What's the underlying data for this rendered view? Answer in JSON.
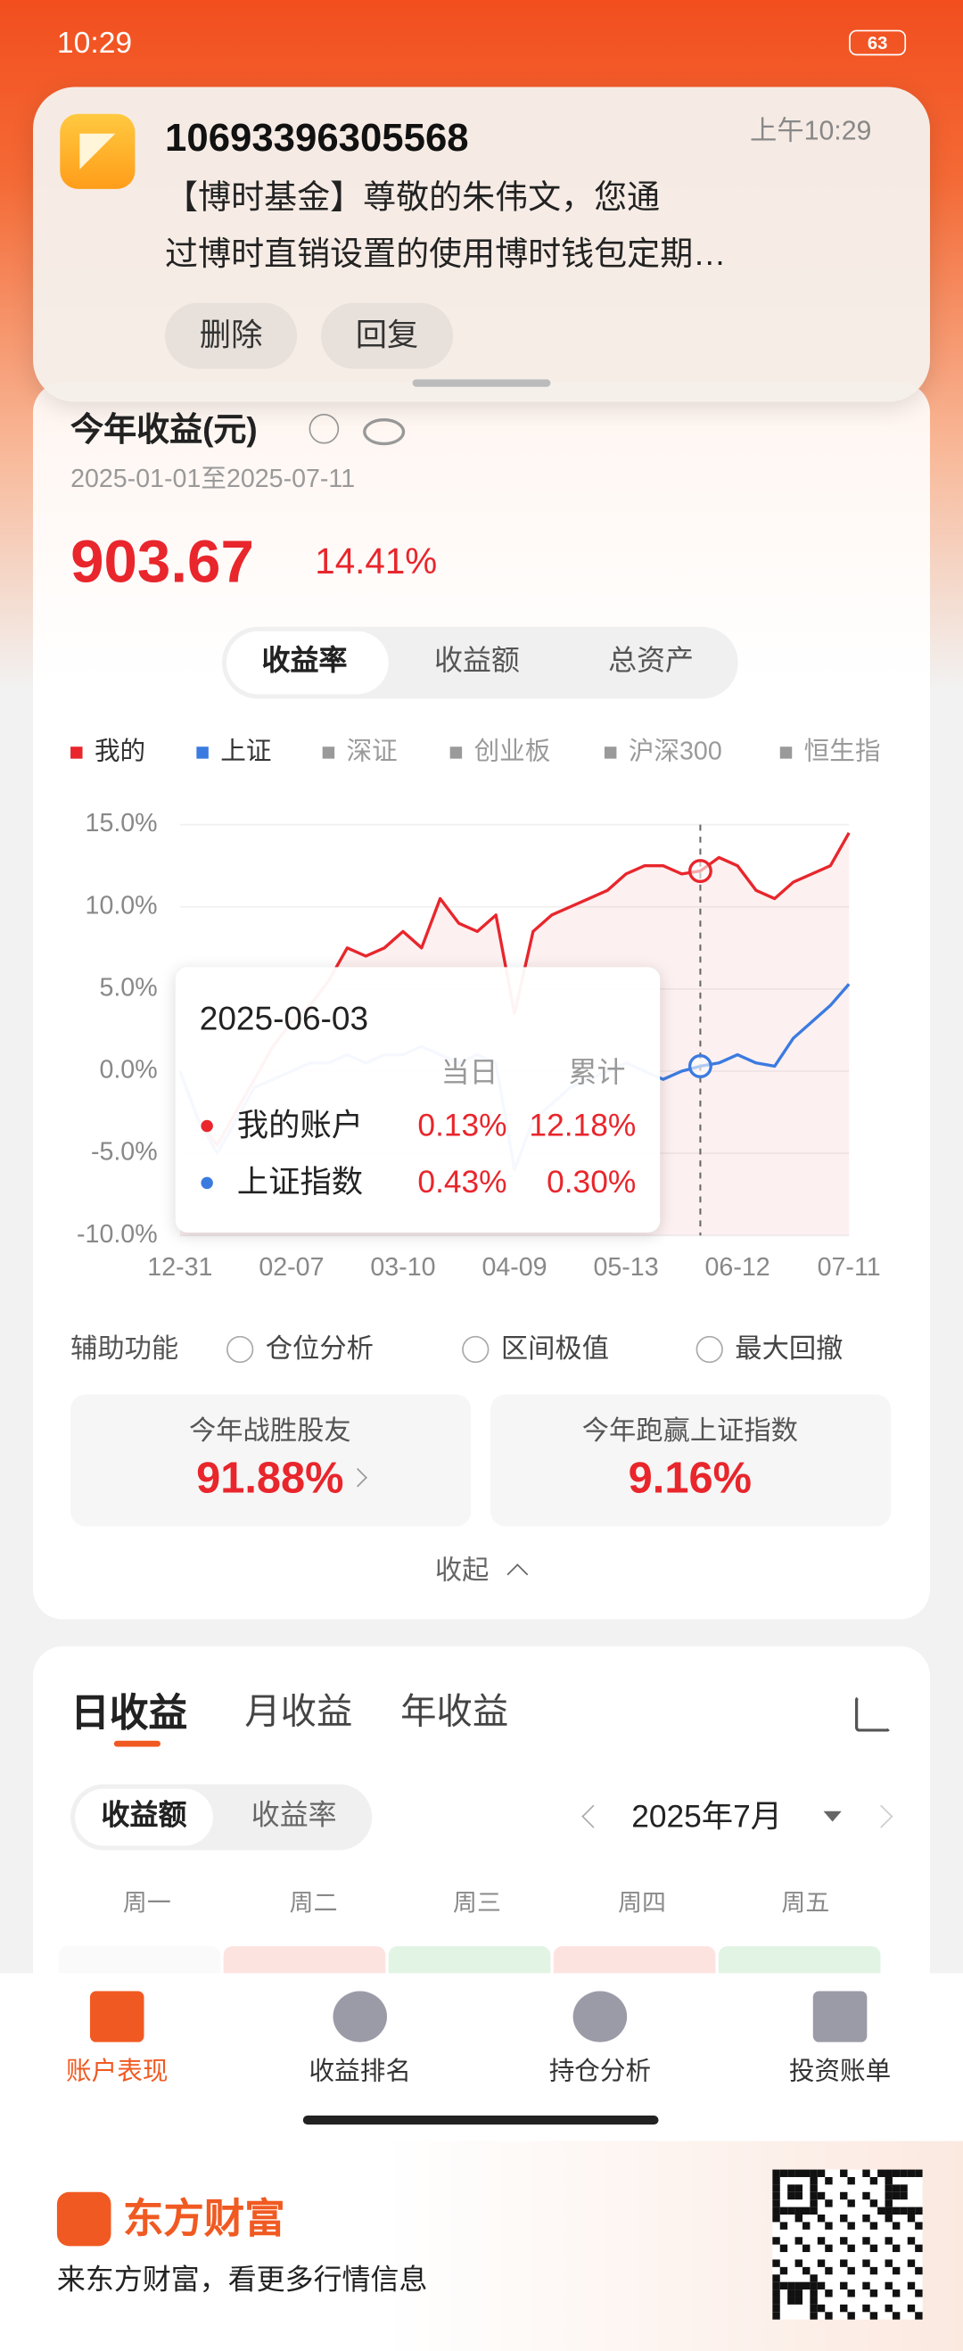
{
  "status_bar": {
    "time": "10:29",
    "battery": "63"
  },
  "notification": {
    "sender": "10693396305568",
    "time": "上午10:29",
    "lines": [
      "【博时基金】尊敬的朱伟文，您通",
      "过博时直销设置的使用博时钱包定期…"
    ],
    "buttons": [
      "删除",
      "回复"
    ]
  },
  "summary": {
    "title": "今年收益(元)",
    "date_range": "2025-01-01至2025-07-11",
    "amount": "903.67",
    "rate": "14.41%"
  },
  "chart_tabs": [
    "收益率",
    "收益额",
    "总资产"
  ],
  "chart_data": {
    "type": "line",
    "categories": [
      "12-31",
      null,
      null,
      null,
      null,
      null,
      "02-07",
      null,
      null,
      null,
      null,
      null,
      "03-10",
      null,
      null,
      null,
      null,
      null,
      "04-09",
      null,
      null,
      null,
      null,
      null,
      "05-13",
      null,
      null,
      null,
      "2025-06-03",
      null,
      "06-12",
      null,
      null,
      null,
      null,
      null,
      "07-11"
    ],
    "series": [
      {
        "name": "我的",
        "color": "#e8262c",
        "values": [
          0,
          -3,
          -4.5,
          -2.5,
          -0.5,
          1.5,
          3,
          4,
          5.5,
          7.5,
          7,
          7.5,
          8.5,
          7.5,
          10.5,
          9,
          8.5,
          9.5,
          3.5,
          8.5,
          9.5,
          10,
          10.5,
          11,
          12,
          12.5,
          12.5,
          12,
          12.18,
          13,
          12.5,
          11,
          10.5,
          11.5,
          12,
          12.5,
          14.5
        ]
      },
      {
        "name": "上证",
        "color": "#3b7be0",
        "values": [
          0,
          -3,
          -5,
          -3,
          -1,
          -0.5,
          0,
          0.5,
          0.5,
          1,
          0.5,
          1,
          1,
          1.5,
          1,
          0.5,
          1,
          0.5,
          -6,
          -3,
          -2,
          -1,
          -0.5,
          0,
          0.5,
          0,
          -0.5,
          0,
          0.3,
          0.5,
          1,
          0.5,
          0.3,
          2,
          3,
          4,
          5.3
        ]
      }
    ],
    "inactive_legend": [
      "深证",
      "创业板",
      "沪深300",
      "恒生指"
    ],
    "inactive_color": "#9a9a9a",
    "ylim": [
      -10,
      15
    ],
    "yticks": [
      {
        "value": -10,
        "label": "-10.0%"
      },
      {
        "value": -5,
        "label": "-5.0%"
      },
      {
        "value": 0,
        "label": "0.0%"
      },
      {
        "value": 5,
        "label": "5.0%"
      },
      {
        "value": 10,
        "label": "10.0%"
      },
      {
        "value": 15,
        "label": "15.0%"
      }
    ],
    "grid": true,
    "tooltip": {
      "headers": [
        "当日",
        "累计"
      ],
      "rows": [
        {
          "name": "我的账户",
          "day": "0.13%",
          "total": "12.18%"
        },
        {
          "name": "上证指数",
          "day": "0.43%",
          "total": "0.30%"
        }
      ]
    }
  },
  "aux": {
    "label": "辅助功能",
    "options": [
      "仓位分析",
      "区间极值",
      "最大回撤"
    ]
  },
  "stats": [
    {
      "label": "今年战胜股友",
      "value": "91.88%"
    },
    {
      "label": "今年跑赢上证指数",
      "value": "9.16%"
    }
  ],
  "collapse": "收起",
  "daily": {
    "tabs": [
      "日收益",
      "月收益",
      "年收益"
    ],
    "toggles": [
      "收益额",
      "收益率"
    ],
    "month": "2025年7月",
    "weekdays": [
      "周一",
      "周二",
      "周三",
      "周四",
      "周五"
    ]
  },
  "nav": [
    "账户表现",
    "收益排名",
    "持仓分析",
    "投资账单"
  ],
  "ad": {
    "brand": "东方财富",
    "slogan": "来东方财富，看更多行情信息"
  }
}
